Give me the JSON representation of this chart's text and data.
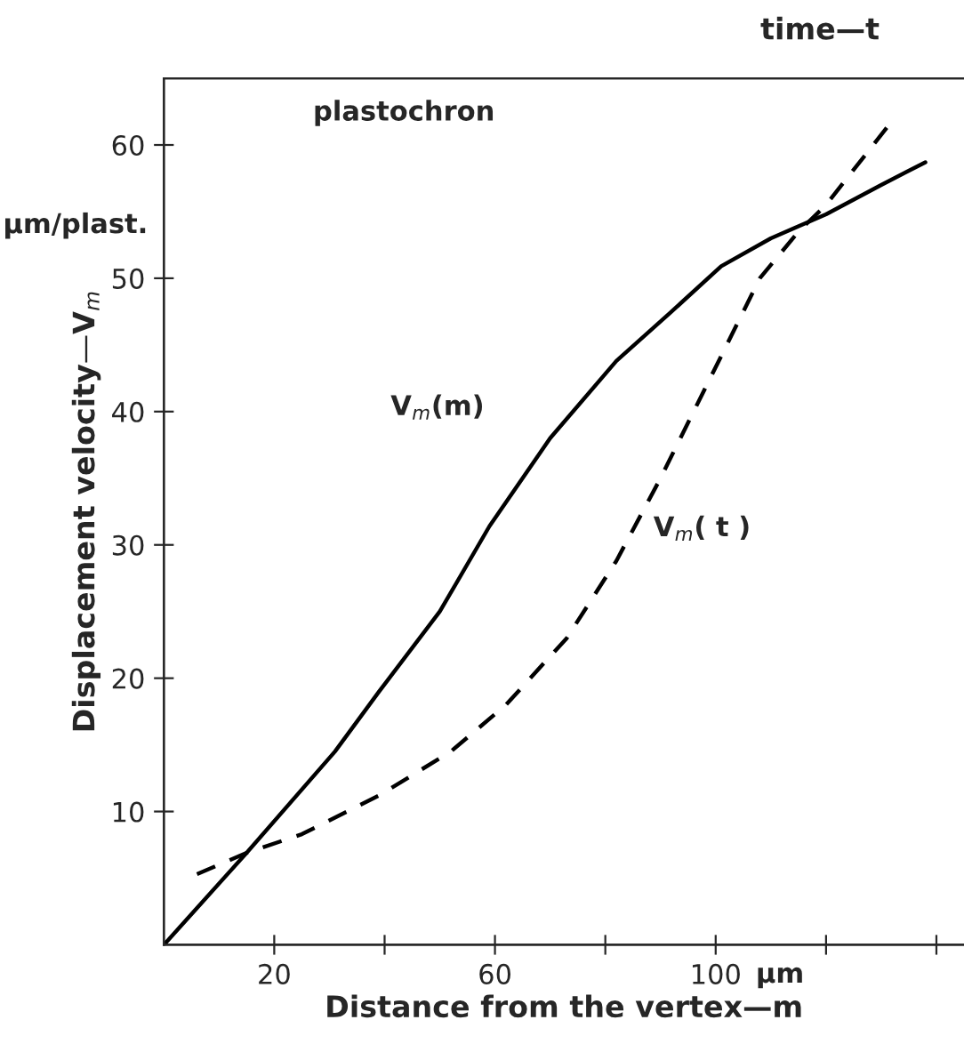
{
  "chart_data": {
    "type": "line",
    "xlabel": "Distance from the vertex—m",
    "ylabel": "Displacement velocity—V$_{m}$",
    "x2label": "time—t",
    "annotations": [
      "plastochron",
      "µm",
      "µm/plast."
    ],
    "xlim": [
      0,
      145
    ],
    "xticks": [
      20,
      {
        "value": 40,
        "label": null
      },
      60,
      {
        "value": 80,
        "label": null
      },
      100,
      {
        "value": 120,
        "label": null
      },
      {
        "value": 140,
        "label": null
      }
    ],
    "ylim": [
      0,
      65
    ],
    "yticks": [
      10,
      20,
      30,
      40,
      50,
      60
    ],
    "grid": false,
    "legend": false,
    "marker": "none",
    "series": [
      {
        "name": "V$_{m}$(m)",
        "color": "#000000",
        "line_style": "solid",
        "x": [
          0,
          15,
          31,
          39,
          50,
          59,
          70,
          82,
          92,
          101,
          110,
          120,
          130,
          138
        ],
        "values": [
          0,
          6.9,
          14.5,
          19,
          25,
          31.4,
          38,
          43.8,
          47.5,
          50.9,
          53,
          54.8,
          57,
          58.7
        ]
      },
      {
        "name": "V$_{m}$( t )",
        "color": "#000000",
        "line_style": "dashed",
        "x": [
          6,
          15,
          25,
          39,
          52,
          62,
          73,
          82,
          90,
          96,
          102,
          108,
          115,
          120,
          131
        ],
        "values": [
          5.3,
          6.9,
          8.3,
          11.2,
          14.5,
          18,
          23,
          28.8,
          35,
          40,
          45,
          50,
          53.5,
          55.5,
          61.3
        ]
      }
    ]
  }
}
